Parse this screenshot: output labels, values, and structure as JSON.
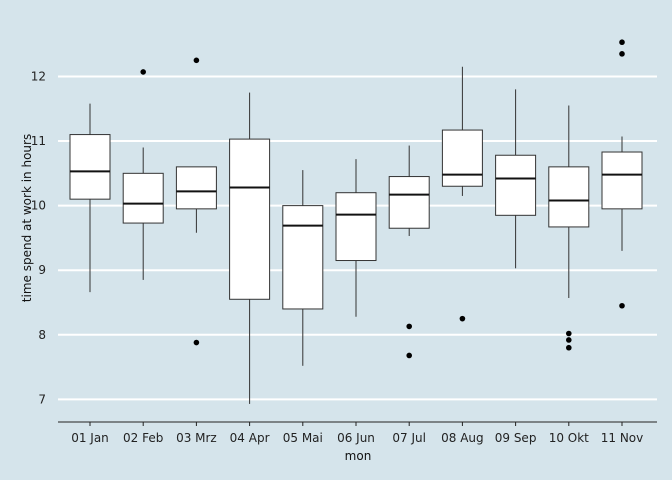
{
  "chart_data": {
    "type": "boxplot",
    "xlabel": "mon",
    "ylabel": "time spend at work in hours",
    "categories": [
      "01 Jan",
      "02 Feb",
      "03 Mrz",
      "04 Apr",
      "05 Mai",
      "06 Jun",
      "07 Jul",
      "08 Aug",
      "09 Sep",
      "10 Okt",
      "11 Nov"
    ],
    "ylim": [
      6.65,
      12.75
    ],
    "yticks": [
      7,
      8,
      9,
      10,
      11,
      12
    ],
    "grid": "horizontal",
    "legend": "none",
    "boxes": [
      {
        "label": "01 Jan",
        "whisker_low": 8.66,
        "q1": 10.1,
        "median": 10.53,
        "q3": 11.1,
        "whisker_high": 11.58,
        "outliers": []
      },
      {
        "label": "02 Feb",
        "whisker_low": 8.85,
        "q1": 9.73,
        "median": 10.03,
        "q3": 10.5,
        "whisker_high": 10.9,
        "outliers": [
          12.07
        ]
      },
      {
        "label": "03 Mrz",
        "whisker_low": 9.58,
        "q1": 9.95,
        "median": 10.22,
        "q3": 10.6,
        "whisker_high": 10.6,
        "outliers": [
          12.25,
          7.88
        ]
      },
      {
        "label": "04 Apr",
        "whisker_low": 6.93,
        "q1": 8.55,
        "median": 10.28,
        "q3": 11.03,
        "whisker_high": 11.75,
        "outliers": []
      },
      {
        "label": "05 Mai",
        "whisker_low": 7.52,
        "q1": 8.4,
        "median": 9.69,
        "q3": 10.0,
        "whisker_high": 10.55,
        "outliers": []
      },
      {
        "label": "06 Jun",
        "whisker_low": 8.28,
        "q1": 9.15,
        "median": 9.86,
        "q3": 10.2,
        "whisker_high": 10.72,
        "outliers": []
      },
      {
        "label": "07 Jul",
        "whisker_low": 9.53,
        "q1": 9.65,
        "median": 10.17,
        "q3": 10.45,
        "whisker_high": 10.93,
        "outliers": [
          8.13,
          7.68
        ]
      },
      {
        "label": "08 Aug",
        "whisker_low": 10.15,
        "q1": 10.3,
        "median": 10.48,
        "q3": 11.17,
        "whisker_high": 12.15,
        "outliers": [
          8.25
        ]
      },
      {
        "label": "09 Sep",
        "whisker_low": 9.03,
        "q1": 9.85,
        "median": 10.42,
        "q3": 10.78,
        "whisker_high": 11.8,
        "outliers": []
      },
      {
        "label": "10 Okt",
        "whisker_low": 8.57,
        "q1": 9.67,
        "median": 10.08,
        "q3": 10.6,
        "whisker_high": 11.55,
        "outliers": [
          8.02,
          7.92,
          7.8
        ]
      },
      {
        "label": "11 Nov",
        "whisker_low": 9.3,
        "q1": 9.95,
        "median": 10.48,
        "q3": 10.83,
        "whisker_high": 11.07,
        "outliers": [
          12.53,
          12.35,
          8.45
        ]
      }
    ]
  },
  "colors": {
    "background": "#d5e4eb",
    "grid": "#ffffff",
    "box_fill": "#ffffff",
    "box_stroke": "#333333",
    "median": "#111111",
    "outlier": "#000000"
  }
}
